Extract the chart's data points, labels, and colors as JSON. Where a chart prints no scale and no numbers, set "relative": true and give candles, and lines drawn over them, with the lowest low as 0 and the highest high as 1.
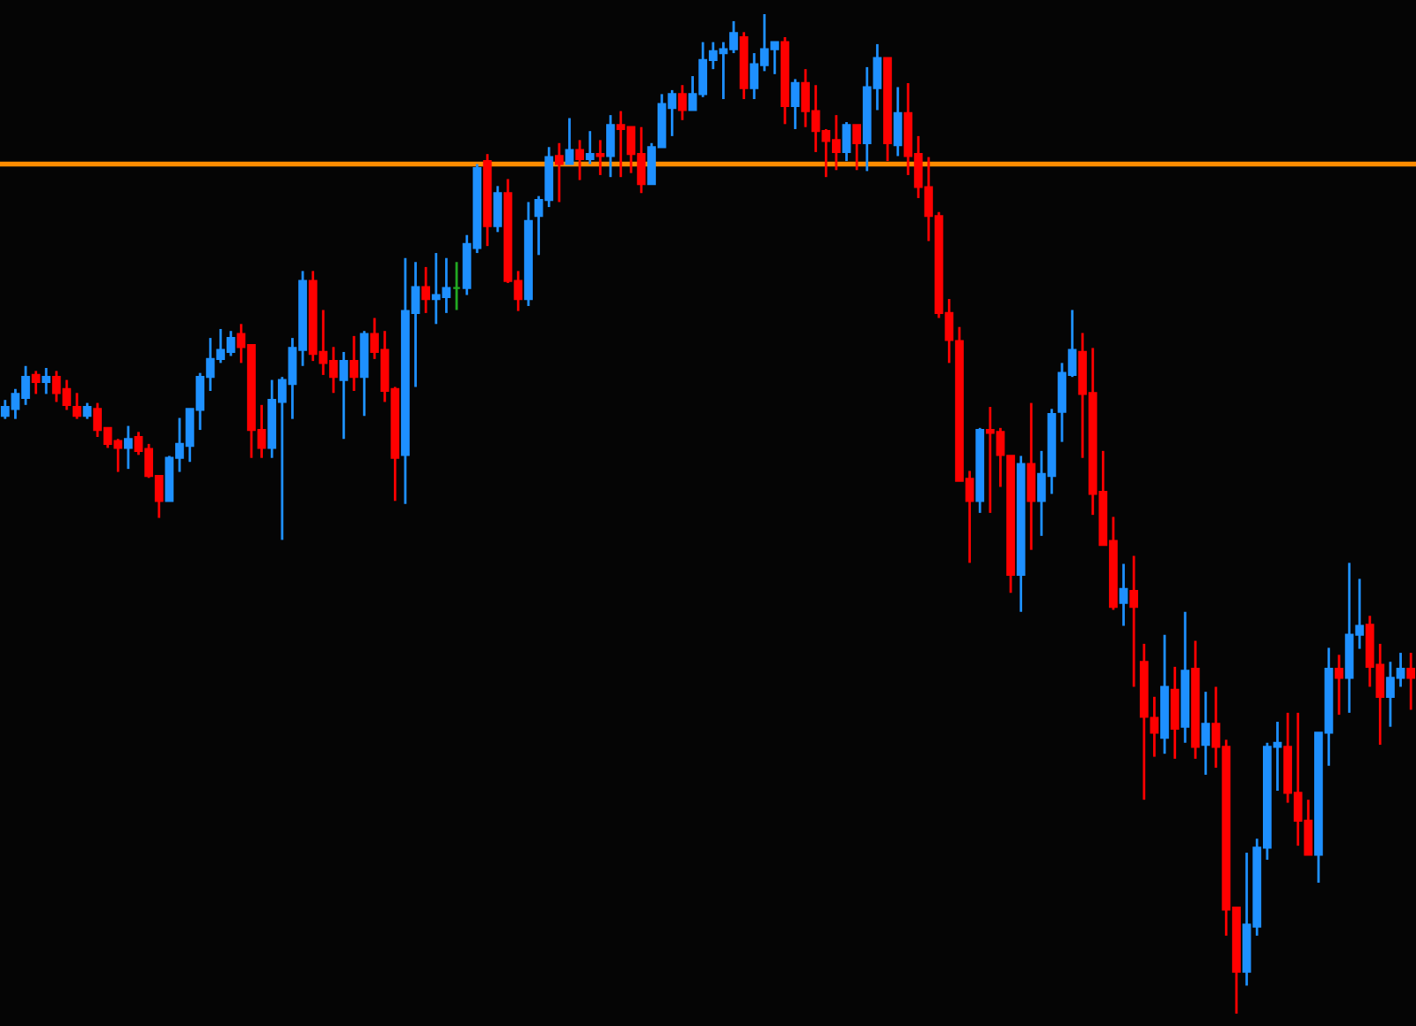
{
  "chart_data": {
    "type": "candlestick",
    "relative": true,
    "categories": [
      null,
      null,
      null,
      null,
      null,
      null,
      null,
      null,
      null,
      null,
      null,
      null,
      null,
      null,
      null,
      null,
      null,
      null,
      null,
      null,
      null,
      null,
      null,
      null,
      null,
      null,
      null,
      null,
      null,
      null,
      null,
      null,
      null,
      null,
      null,
      null,
      null,
      null,
      null,
      null,
      null,
      null,
      null,
      null,
      null,
      null,
      null,
      null,
      null,
      null,
      null,
      null,
      null,
      null,
      null,
      null,
      null,
      null,
      null,
      null,
      null,
      null,
      null,
      null,
      null,
      null,
      null,
      null,
      null,
      null,
      null,
      null,
      null,
      null,
      null,
      null,
      null,
      null,
      null,
      null,
      null,
      null,
      null,
      null,
      null,
      null,
      null,
      null,
      null,
      null,
      null,
      null,
      null,
      null,
      null,
      null,
      null,
      null,
      null,
      null,
      null,
      null,
      null,
      null,
      null,
      null,
      null,
      null,
      null,
      null,
      null,
      null,
      null,
      null,
      null,
      null,
      null,
      null,
      null,
      null,
      null,
      null,
      null,
      null,
      null,
      null,
      null,
      null,
      null,
      null,
      null,
      null,
      null,
      null,
      null,
      null,
      null,
      null
    ],
    "ohlc": [
      [
        0.598,
        0.614,
        0.595,
        0.607
      ],
      [
        0.605,
        0.625,
        0.595,
        0.62
      ],
      [
        0.616,
        0.648,
        0.609,
        0.637
      ],
      [
        0.639,
        0.643,
        0.62,
        0.632
      ],
      [
        0.632,
        0.646,
        0.62,
        0.637
      ],
      [
        0.637,
        0.643,
        0.612,
        0.621
      ],
      [
        0.625,
        0.634,
        0.604,
        0.609
      ],
      [
        0.607,
        0.621,
        0.595,
        0.598
      ],
      [
        0.598,
        0.611,
        0.595,
        0.607
      ],
      [
        0.605,
        0.611,
        0.577,
        0.584
      ],
      [
        0.586,
        0.586,
        0.566,
        0.57
      ],
      [
        0.573,
        0.575,
        0.542,
        0.566
      ],
      [
        0.566,
        0.588,
        0.545,
        0.575
      ],
      [
        0.577,
        0.582,
        0.559,
        0.563
      ],
      [
        0.565,
        0.57,
        0.536,
        0.538
      ],
      [
        0.538,
        0.538,
        0.496,
        0.513
      ],
      [
        0.513,
        0.558,
        0.513,
        0.556
      ],
      [
        0.556,
        0.596,
        0.542,
        0.57
      ],
      [
        0.568,
        0.605,
        0.552,
        0.605
      ],
      [
        0.604,
        0.641,
        0.584,
        0.637
      ],
      [
        0.637,
        0.676,
        0.623,
        0.655
      ],
      [
        0.655,
        0.685,
        0.651,
        0.664
      ],
      [
        0.662,
        0.683,
        0.658,
        0.676
      ],
      [
        0.68,
        0.69,
        0.651,
        0.667
      ],
      [
        0.669,
        0.669,
        0.556,
        0.584
      ],
      [
        0.584,
        0.609,
        0.556,
        0.566
      ],
      [
        0.566,
        0.634,
        0.556,
        0.614
      ],
      [
        0.612,
        0.637,
        0.474,
        0.634
      ],
      [
        0.63,
        0.676,
        0.595,
        0.666
      ],
      [
        0.664,
        0.743,
        0.648,
        0.733
      ],
      [
        0.733,
        0.743,
        0.653,
        0.66
      ],
      [
        0.662,
        0.704,
        0.639,
        0.651
      ],
      [
        0.653,
        0.667,
        0.621,
        0.637
      ],
      [
        0.634,
        0.662,
        0.575,
        0.653
      ],
      [
        0.653,
        0.678,
        0.623,
        0.637
      ],
      [
        0.637,
        0.683,
        0.598,
        0.68
      ],
      [
        0.68,
        0.696,
        0.655,
        0.662
      ],
      [
        0.664,
        0.683,
        0.612,
        0.623
      ],
      [
        0.625,
        0.627,
        0.513,
        0.556
      ],
      [
        0.559,
        0.756,
        0.51,
        0.703
      ],
      [
        0.701,
        0.752,
        0.627,
        0.727
      ],
      [
        0.727,
        0.747,
        0.701,
        0.715
      ],
      [
        0.715,
        0.761,
        0.69,
        0.719
      ],
      [
        0.717,
        0.756,
        0.701,
        0.726
      ],
      [
        0.726,
        0.752,
        0.704,
        0.726
      ],
      [
        0.726,
        0.779,
        0.719,
        0.77
      ],
      [
        0.766,
        0.85,
        0.761,
        0.846
      ],
      [
        0.853,
        0.86,
        0.768,
        0.788
      ],
      [
        0.788,
        0.828,
        0.782,
        0.821
      ],
      [
        0.821,
        0.835,
        0.731,
        0.733
      ],
      [
        0.733,
        0.743,
        0.703,
        0.715
      ],
      [
        0.715,
        0.812,
        0.708,
        0.793
      ],
      [
        0.798,
        0.818,
        0.759,
        0.814
      ],
      [
        0.814,
        0.867,
        0.807,
        0.857
      ],
      [
        0.858,
        0.871,
        0.812,
        0.85
      ],
      [
        0.85,
        0.896,
        0.85,
        0.864
      ],
      [
        0.864,
        0.874,
        0.834,
        0.855
      ],
      [
        0.855,
        0.883,
        0.85,
        0.86
      ],
      [
        0.86,
        0.874,
        0.839,
        0.858
      ],
      [
        0.858,
        0.899,
        0.837,
        0.889
      ],
      [
        0.889,
        0.903,
        0.837,
        0.885
      ],
      [
        0.887,
        0.887,
        0.841,
        0.86
      ],
      [
        0.86,
        0.887,
        0.821,
        0.83
      ],
      [
        0.83,
        0.871,
        0.83,
        0.867
      ],
      [
        0.867,
        0.92,
        0.867,
        0.91
      ],
      [
        0.906,
        0.924,
        0.878,
        0.92
      ],
      [
        0.92,
        0.929,
        0.894,
        0.904
      ],
      [
        0.904,
        0.938,
        0.904,
        0.92
      ],
      [
        0.92,
        0.972,
        0.917,
        0.954
      ],
      [
        0.954,
        0.972,
        0.945,
        0.963
      ],
      [
        0.961,
        0.972,
        0.915,
        0.965
      ],
      [
        0.965,
        0.993,
        0.961,
        0.981
      ],
      [
        0.977,
        0.982,
        0.915,
        0.926
      ],
      [
        0.926,
        0.961,
        0.915,
        0.95
      ],
      [
        0.949,
        1,
        0.943,
        0.965
      ],
      [
        0.965,
        0.972,
        0.94,
        0.972
      ],
      [
        0.972,
        0.977,
        0.89,
        0.908
      ],
      [
        0.908,
        0.935,
        0.885,
        0.931
      ],
      [
        0.931,
        0.945,
        0.887,
        0.903
      ],
      [
        0.903,
        0.929,
        0.862,
        0.883
      ],
      [
        0.883,
        0.885,
        0.837,
        0.873
      ],
      [
        0.874,
        0.899,
        0.844,
        0.862
      ],
      [
        0.862,
        0.892,
        0.853,
        0.889
      ],
      [
        0.889,
        0.889,
        0.844,
        0.871
      ],
      [
        0.871,
        0.947,
        0.843,
        0.927
      ],
      [
        0.926,
        0.97,
        0.904,
        0.956
      ],
      [
        0.956,
        0.956,
        0.853,
        0.871
      ],
      [
        0.869,
        0.927,
        0.858,
        0.901
      ],
      [
        0.901,
        0.931,
        0.839,
        0.858
      ],
      [
        0.86,
        0.878,
        0.816,
        0.827
      ],
      [
        0.827,
        0.857,
        0.773,
        0.798
      ],
      [
        0.798,
        0.802,
        0.696,
        0.701
      ],
      [
        0.701,
        0.715,
        0.651,
        0.674
      ],
      [
        0.673,
        0.687,
        0.533,
        0.533
      ],
      [
        0.535,
        0.543,
        0.451,
        0.513
      ],
      [
        0.513,
        0.586,
        0.501,
        0.584
      ],
      [
        0.584,
        0.607,
        0.501,
        0.581
      ],
      [
        0.582,
        0.586,
        0.527,
        0.559
      ],
      [
        0.558,
        0.558,
        0.421,
        0.439
      ],
      [
        0.439,
        0.558,
        0.402,
        0.55
      ],
      [
        0.55,
        0.611,
        0.464,
        0.513
      ],
      [
        0.513,
        0.563,
        0.478,
        0.54
      ],
      [
        0.538,
        0.605,
        0.52,
        0.6
      ],
      [
        0.602,
        0.651,
        0.572,
        0.641
      ],
      [
        0.639,
        0.704,
        0.637,
        0.664
      ],
      [
        0.662,
        0.681,
        0.556,
        0.62
      ],
      [
        0.621,
        0.666,
        0.499,
        0.52
      ],
      [
        0.522,
        0.563,
        0.469,
        0.469
      ],
      [
        0.473,
        0.497,
        0.404,
        0.407
      ],
      [
        0.411,
        0.45,
        0.388,
        0.425
      ],
      [
        0.423,
        0.458,
        0.327,
        0.407
      ],
      [
        0.352,
        0.37,
        0.214,
        0.297
      ],
      [
        0.296,
        0.317,
        0.257,
        0.281
      ],
      [
        0.276,
        0.379,
        0.26,
        0.327
      ],
      [
        0.324,
        0.347,
        0.255,
        0.285
      ],
      [
        0.287,
        0.402,
        0.271,
        0.343
      ],
      [
        0.345,
        0.373,
        0.255,
        0.267
      ],
      [
        0.269,
        0.322,
        0.239,
        0.29
      ],
      [
        0.29,
        0.327,
        0.246,
        0.267
      ],
      [
        0.267,
        0.274,
        0.078,
        0.104
      ],
      [
        0.106,
        0.106,
        0,
        0.042
      ],
      [
        0.042,
        0.161,
        0.028,
        0.089
      ],
      [
        0.087,
        0.175,
        0.078,
        0.166
      ],
      [
        0.166,
        0.271,
        0.154,
        0.267
      ],
      [
        0.267,
        0.292,
        0.223,
        0.271
      ],
      [
        0.267,
        0.301,
        0.211,
        0.221
      ],
      [
        0.221,
        0.301,
        0.168,
        0.193
      ],
      [
        0.193,
        0.214,
        0.159,
        0.159
      ],
      [
        0.159,
        0.281,
        0.131,
        0.281
      ],
      [
        0.281,
        0.366,
        0.248,
        0.345
      ],
      [
        0.345,
        0.359,
        0.299,
        0.336
      ],
      [
        0.336,
        0.451,
        0.301,
        0.379
      ],
      [
        0.379,
        0.435,
        0.365,
        0.388
      ],
      [
        0.389,
        0.398,
        0.327,
        0.347
      ],
      [
        0.349,
        0.37,
        0.269,
        0.317
      ],
      [
        0.317,
        0.352,
        0.287,
        0.336
      ],
      [
        0.336,
        0.361,
        0.327,
        0.345
      ],
      [
        0.345,
        0.361,
        0.304,
        0.336
      ]
    ],
    "colors": [
      "#1e90ff",
      "#1e90ff",
      "#1e90ff",
      "#ff0000",
      "#1e90ff",
      "#ff0000",
      "#ff0000",
      "#ff0000",
      "#1e90ff",
      "#ff0000",
      "#ff0000",
      "#ff0000",
      "#1e90ff",
      "#ff0000",
      "#ff0000",
      "#ff0000",
      "#1e90ff",
      "#1e90ff",
      "#1e90ff",
      "#1e90ff",
      "#1e90ff",
      "#1e90ff",
      "#1e90ff",
      "#ff0000",
      "#ff0000",
      "#ff0000",
      "#1e90ff",
      "#1e90ff",
      "#1e90ff",
      "#1e90ff",
      "#ff0000",
      "#ff0000",
      "#ff0000",
      "#1e90ff",
      "#ff0000",
      "#1e90ff",
      "#ff0000",
      "#ff0000",
      "#ff0000",
      "#1e90ff",
      "#1e90ff",
      "#ff0000",
      "#1e90ff",
      "#1e90ff",
      "#22aa22",
      "#1e90ff",
      "#1e90ff",
      "#ff0000",
      "#1e90ff",
      "#ff0000",
      "#ff0000",
      "#1e90ff",
      "#1e90ff",
      "#1e90ff",
      "#ff0000",
      "#1e90ff",
      "#ff0000",
      "#1e90ff",
      "#ff0000",
      "#1e90ff",
      "#ff0000",
      "#ff0000",
      "#ff0000",
      "#1e90ff",
      "#1e90ff",
      "#1e90ff",
      "#ff0000",
      "#1e90ff",
      "#1e90ff",
      "#1e90ff",
      "#1e90ff",
      "#1e90ff",
      "#ff0000",
      "#1e90ff",
      "#1e90ff",
      "#1e90ff",
      "#ff0000",
      "#1e90ff",
      "#ff0000",
      "#ff0000",
      "#ff0000",
      "#ff0000",
      "#1e90ff",
      "#ff0000",
      "#1e90ff",
      "#1e90ff",
      "#ff0000",
      "#1e90ff",
      "#ff0000",
      "#ff0000",
      "#ff0000",
      "#ff0000",
      "#ff0000",
      "#ff0000",
      "#ff0000",
      "#1e90ff",
      "#ff0000",
      "#ff0000",
      "#ff0000",
      "#1e90ff",
      "#ff0000",
      "#1e90ff",
      "#1e90ff",
      "#1e90ff",
      "#1e90ff",
      "#ff0000",
      "#ff0000",
      "#ff0000",
      "#ff0000",
      "#1e90ff",
      "#ff0000",
      "#ff0000",
      "#ff0000",
      "#1e90ff",
      "#ff0000",
      "#1e90ff",
      "#ff0000",
      "#1e90ff",
      "#ff0000",
      "#ff0000",
      "#ff0000",
      "#1e90ff",
      "#1e90ff",
      "#1e90ff",
      "#1e90ff",
      "#ff0000",
      "#ff0000",
      "#ff0000",
      "#1e90ff",
      "#1e90ff",
      "#ff0000",
      "#1e90ff",
      "#1e90ff",
      "#ff0000",
      "#ff0000",
      "#1e90ff",
      "#1e90ff",
      "#ff0000"
    ],
    "ref_lines": [
      {
        "axis": "y",
        "value": 0.85,
        "label": null,
        "color": "#ff8c00"
      }
    ]
  }
}
